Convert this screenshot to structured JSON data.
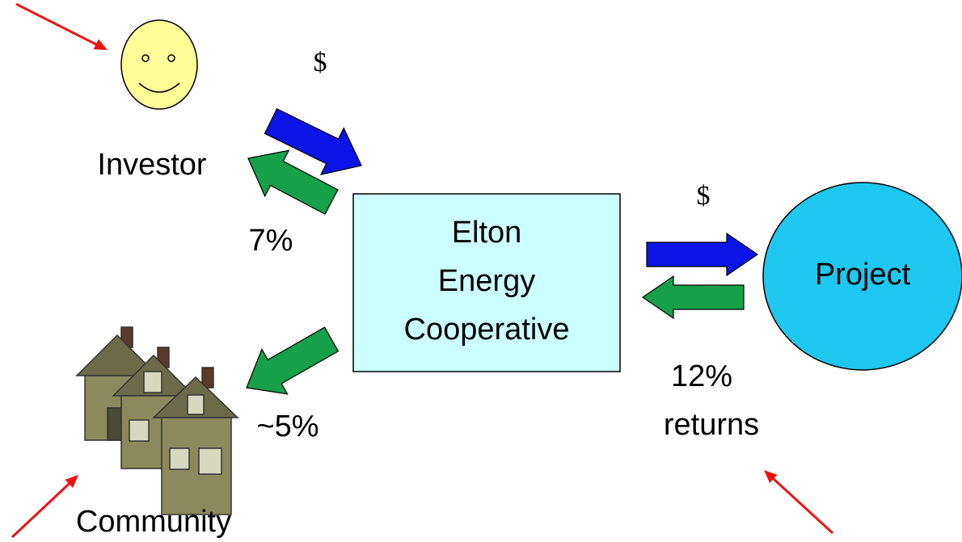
{
  "nodes": {
    "investor": {
      "label": "Investor"
    },
    "cooperative": {
      "lines": [
        "Elton",
        "Energy",
        "Cooperative"
      ]
    },
    "project": {
      "label": "Project"
    },
    "community": {
      "label": "Community"
    }
  },
  "flows": {
    "investor_to_coop": {
      "label": "$"
    },
    "coop_to_investor": {
      "label": "7%"
    },
    "coop_to_project": {
      "label": "$"
    },
    "project_to_coop": {
      "lines": [
        "12%",
        "returns"
      ]
    },
    "coop_to_community": {
      "label": "~5%"
    }
  }
}
